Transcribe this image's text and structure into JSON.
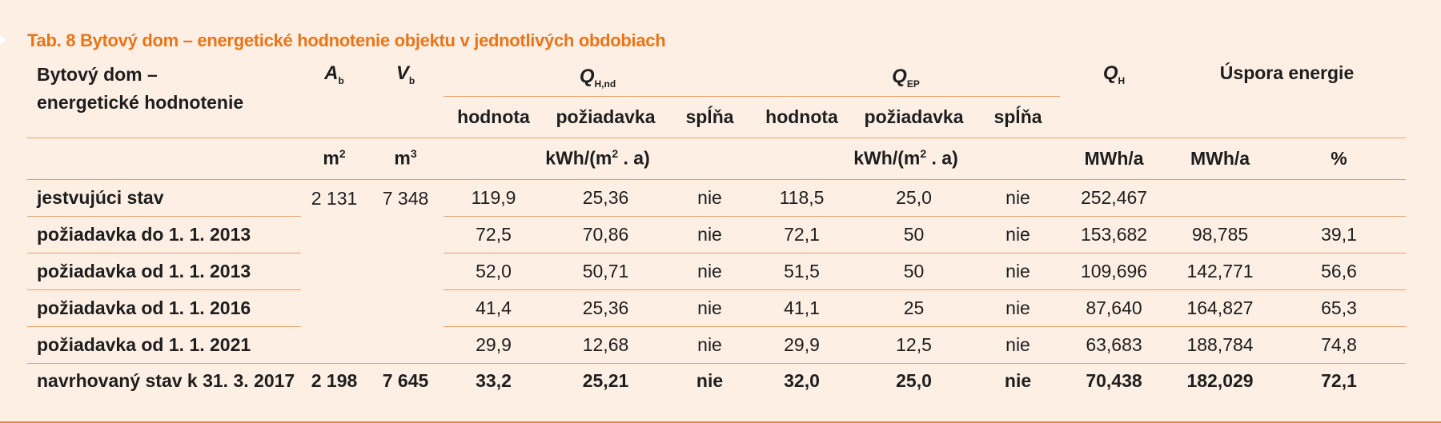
{
  "caption": "Tab. 8 Bytový dom – energetické hodnotenie objektu v jednotlivých obdobiach",
  "header": {
    "name_line1": "Bytový dom –",
    "name_line2": "energetické hodnotenie",
    "ab_sym": "A",
    "ab_sub": "b",
    "vb_sym": "V",
    "vb_sub": "b",
    "qhnd_sym": "Q",
    "qhnd_sub": "H,nd",
    "qep_sym": "Q",
    "qep_sub": "EP",
    "qh_sym": "Q",
    "qh_sub": "H",
    "savings": "Úspora energie",
    "hodnota": "hodnota",
    "poziadavka": "požiadavka",
    "splna": "spĺňa",
    "unit_area": "m",
    "unit_area_exp": "2",
    "unit_vol": "m",
    "unit_vol_exp": "3",
    "unit_spec_a": "kWh/(m",
    "unit_spec_exp": "2",
    "unit_spec_b": " . a)",
    "unit_mwh1": "MWh/a",
    "unit_mwh2": "MWh/a",
    "unit_pct": "%"
  },
  "rows": [
    {
      "name": "jestvujúci stav",
      "ab": "2 131",
      "vb": "7 348",
      "qhnd_val": "119,9",
      "qhnd_req": "25,36",
      "qhnd_ok": "nie",
      "qep_val": "118,5",
      "qep_req": "25,0",
      "qep_ok": "nie",
      "qh": "252,467",
      "save_mwh": "",
      "save_pct": ""
    },
    {
      "name": "požiadavka do 1. 1. 2013",
      "ab": "",
      "vb": "",
      "qhnd_val": "72,5",
      "qhnd_req": "70,86",
      "qhnd_ok": "nie",
      "qep_val": "72,1",
      "qep_req": "50",
      "qep_ok": "nie",
      "qh": "153,682",
      "save_mwh": "98,785",
      "save_pct": "39,1"
    },
    {
      "name": "požiadavka od 1. 1. 2013",
      "ab": "",
      "vb": "",
      "qhnd_val": "52,0",
      "qhnd_req": "50,71",
      "qhnd_ok": "nie",
      "qep_val": "51,5",
      "qep_req": "50",
      "qep_ok": "nie",
      "qh": "109,696",
      "save_mwh": "142,771",
      "save_pct": "56,6"
    },
    {
      "name": "požiadavka od 1. 1. 2016",
      "ab": "",
      "vb": "",
      "qhnd_val": "41,4",
      "qhnd_req": "25,36",
      "qhnd_ok": "nie",
      "qep_val": "41,1",
      "qep_req": "25",
      "qep_ok": "nie",
      "qh": "87,640",
      "save_mwh": "164,827",
      "save_pct": "65,3"
    },
    {
      "name": "požiadavka od 1. 1. 2021",
      "ab": "",
      "vb": "",
      "qhnd_val": "29,9",
      "qhnd_req": "12,68",
      "qhnd_ok": "nie",
      "qep_val": "29,9",
      "qep_req": "12,5",
      "qep_ok": "nie",
      "qh": "63,683",
      "save_mwh": "188,784",
      "save_pct": "74,8"
    },
    {
      "name": "navrhovaný stav k 31. 3. 2017",
      "ab": "2 198",
      "vb": "7 645",
      "qhnd_val": "33,2",
      "qhnd_req": "25,21",
      "qhnd_ok": "nie",
      "qep_val": "32,0",
      "qep_req": "25,0",
      "qep_ok": "nie",
      "qh": "70,438",
      "save_mwh": "182,029",
      "save_pct": "72,1"
    }
  ]
}
